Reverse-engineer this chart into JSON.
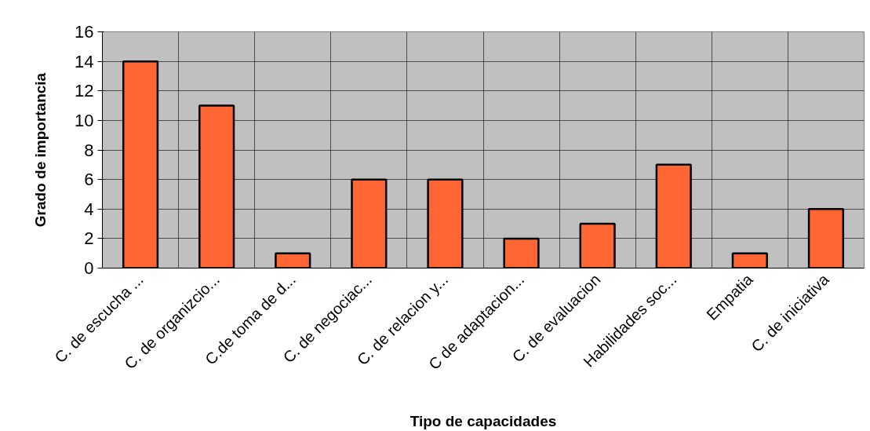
{
  "chart_data": {
    "type": "bar",
    "xlabel": "Tipo de capacidades",
    "ylabel": "Grado de importancia",
    "categories": [
      "C. de escucha ...",
      "C. de organizcio...",
      "C.de toma de d...",
      "C. de negociac...",
      "C. de relacion y...",
      "C de adaptacion...",
      "C. de evaluacion",
      "Habilidades soc...",
      "Empatia",
      "C. de iniciativa"
    ],
    "values": [
      14,
      11,
      1,
      6,
      6,
      2,
      3,
      7,
      1,
      4
    ],
    "color": "#ff6633",
    "ylim": [
      0,
      16
    ],
    "yticks": [
      0,
      2,
      4,
      6,
      8,
      10,
      12,
      14,
      16
    ],
    "grid": true
  }
}
